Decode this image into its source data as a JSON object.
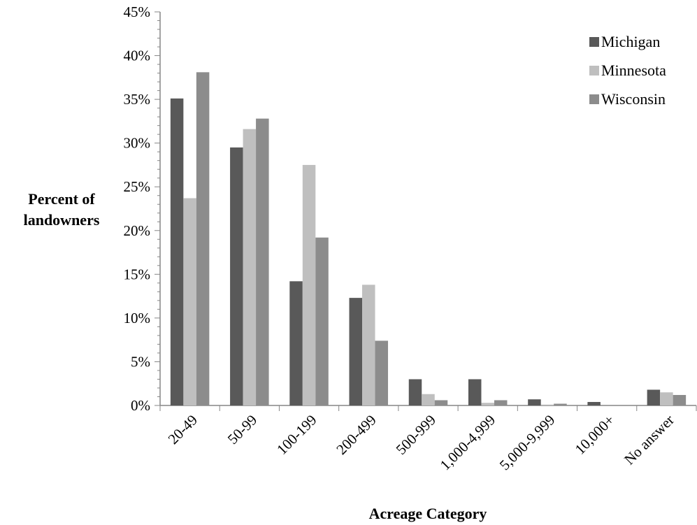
{
  "chart_data": {
    "type": "bar",
    "xlabel": "Acreage Category",
    "ylabel_lines": [
      "Percent of",
      "landowners"
    ],
    "ylim": [
      0,
      45
    ],
    "yticks": [
      "0%",
      "5%",
      "10%",
      "15%",
      "20%",
      "25%",
      "30%",
      "35%",
      "40%",
      "45%"
    ],
    "categories": [
      "20-49",
      "50-99",
      "100-199",
      "200-499",
      "500-999",
      "1,000-4,999",
      "5,000-9,999",
      "10,000+",
      "No answer"
    ],
    "series": [
      {
        "name": "Michigan",
        "color": "#595959",
        "values": [
          35.1,
          29.5,
          14.2,
          12.3,
          3.0,
          3.0,
          0.7,
          0.4,
          1.8
        ]
      },
      {
        "name": "Minnesota",
        "color": "#bfbfbf",
        "values": [
          23.7,
          31.6,
          27.5,
          13.8,
          1.3,
          0.3,
          0.1,
          0.0,
          1.5
        ]
      },
      {
        "name": "Wisconsin",
        "color": "#8c8c8c",
        "values": [
          38.1,
          32.8,
          19.2,
          7.4,
          0.6,
          0.6,
          0.2,
          0.0,
          1.2
        ]
      }
    ],
    "legend_position": "top-right",
    "grid": false
  }
}
